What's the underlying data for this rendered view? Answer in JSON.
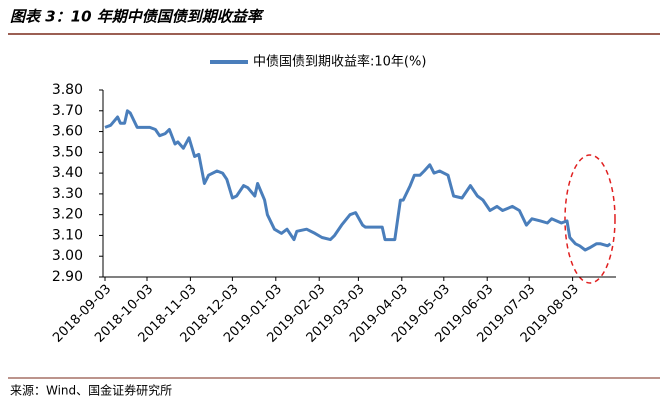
{
  "chart_data": {
    "type": "line",
    "title": "图表 3：10 年期中债国债到期收益率",
    "source": "来源：Wind、国金证券研究所",
    "x": [
      "2018-09-03",
      "2018-09-07",
      "2018-09-12",
      "2018-09-14",
      "2018-09-17",
      "2018-09-19",
      "2018-09-21",
      "2018-09-26",
      "2018-10-05",
      "2018-10-09",
      "2018-10-12",
      "2018-10-16",
      "2018-10-19",
      "2018-10-23",
      "2018-10-25",
      "2018-10-29",
      "2018-11-02",
      "2018-11-06",
      "2018-11-09",
      "2018-11-13",
      "2018-11-16",
      "2018-11-22",
      "2018-11-26",
      "2018-11-29",
      "2018-12-03",
      "2018-12-06",
      "2018-12-11",
      "2018-12-14",
      "2018-12-19",
      "2018-12-21",
      "2018-12-26",
      "2018-12-28",
      "2019-01-02",
      "2019-01-07",
      "2019-01-11",
      "2019-01-16",
      "2019-01-18",
      "2019-01-25",
      "2019-01-31",
      "2019-02-05",
      "2019-02-11",
      "2019-02-14",
      "2019-02-19",
      "2019-02-25",
      "2019-03-01",
      "2019-03-06",
      "2019-03-08",
      "2019-03-15",
      "2019-03-20",
      "2019-03-22",
      "2019-03-29",
      "2019-04-02",
      "2019-04-04",
      "2019-04-09",
      "2019-04-12",
      "2019-04-16",
      "2019-04-19",
      "2019-04-23",
      "2019-04-26",
      "2019-04-30",
      "2019-05-06",
      "2019-05-08",
      "2019-05-10",
      "2019-05-16",
      "2019-05-22",
      "2019-05-27",
      "2019-05-31",
      "2019-06-05",
      "2019-06-10",
      "2019-06-14",
      "2019-06-21",
      "2019-06-26",
      "2019-07-01",
      "2019-07-05",
      "2019-07-11",
      "2019-07-16",
      "2019-07-19",
      "2019-07-26",
      "2019-07-30",
      "2019-08-01",
      "2019-08-05",
      "2019-08-08",
      "2019-08-12",
      "2019-08-15",
      "2019-08-20",
      "2019-08-23",
      "2019-08-28",
      "2019-08-30"
    ],
    "series": [
      {
        "name": "中债国债到期收益率:10年(%)",
        "color": "#4a7ebb",
        "values": [
          3.62,
          3.63,
          3.67,
          3.64,
          3.64,
          3.7,
          3.69,
          3.62,
          3.62,
          3.61,
          3.58,
          3.59,
          3.61,
          3.54,
          3.55,
          3.52,
          3.57,
          3.48,
          3.49,
          3.35,
          3.39,
          3.41,
          3.4,
          3.37,
          3.28,
          3.29,
          3.34,
          3.33,
          3.29,
          3.35,
          3.27,
          3.2,
          3.13,
          3.11,
          3.13,
          3.08,
          3.12,
          3.13,
          3.11,
          3.09,
          3.08,
          3.1,
          3.15,
          3.2,
          3.21,
          3.15,
          3.14,
          3.14,
          3.14,
          3.08,
          3.08,
          3.27,
          3.27,
          3.34,
          3.39,
          3.39,
          3.41,
          3.44,
          3.4,
          3.41,
          3.39,
          3.34,
          3.29,
          3.28,
          3.34,
          3.29,
          3.27,
          3.22,
          3.24,
          3.22,
          3.24,
          3.22,
          3.15,
          3.18,
          3.17,
          3.16,
          3.18,
          3.16,
          3.17,
          3.09,
          3.06,
          3.05,
          3.03,
          3.04,
          3.06,
          3.06,
          3.05,
          3.06
        ]
      }
    ],
    "xlim": [
      "2018-09-03",
      "2019-09-03"
    ],
    "xticks": [
      "2018-09-03",
      "2018-10-03",
      "2018-11-03",
      "2018-12-03",
      "2019-01-03",
      "2019-02-03",
      "2019-03-03",
      "2019-04-03",
      "2019-05-03",
      "2019-06-03",
      "2019-07-03",
      "2019-08-03"
    ],
    "ylim": [
      2.9,
      3.8
    ],
    "yticks": [
      {
        "value": 3.8,
        "label": "3.80"
      },
      {
        "value": 3.7,
        "label": "3.70"
      },
      {
        "value": 3.6,
        "label": "3.60"
      },
      {
        "value": 3.5,
        "label": "3.50"
      },
      {
        "value": 3.4,
        "label": "3.40"
      },
      {
        "value": 3.3,
        "label": "3.30"
      },
      {
        "value": 3.2,
        "label": "3.20"
      },
      {
        "value": 3.1,
        "label": "3.10"
      },
      {
        "value": 3.0,
        "label": "3.00"
      },
      {
        "value": 2.9,
        "label": "2.90"
      }
    ],
    "grid": false,
    "legend": "top"
  }
}
